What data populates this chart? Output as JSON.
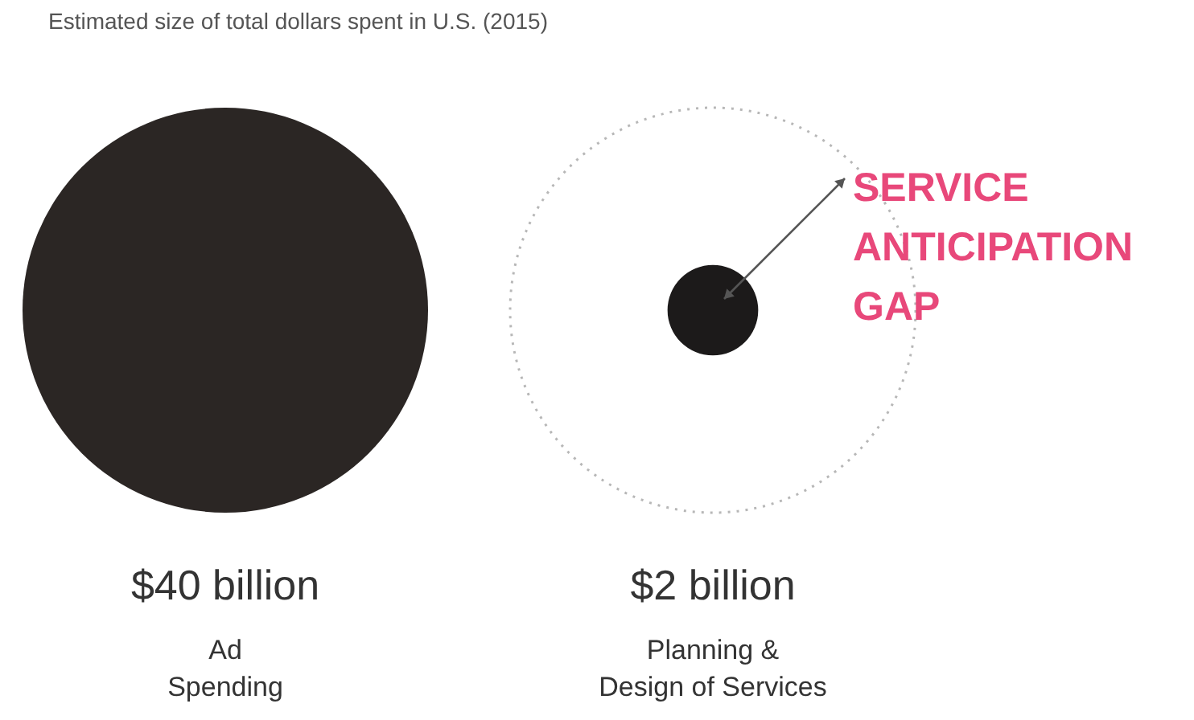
{
  "chart_data": {
    "type": "other",
    "title": "Estimated size of total dollars spent in U.S. (2015)",
    "categories": [
      "Ad Spending",
      "Planning & Design of Services"
    ],
    "values": [
      40,
      2
    ],
    "value_labels": [
      "$40 billion",
      "$2 billion"
    ],
    "colors": [
      "#2b2624",
      "#1c1a1a"
    ],
    "annotations": [
      "SERVICE ANTICIPATION GAP"
    ]
  }
}
